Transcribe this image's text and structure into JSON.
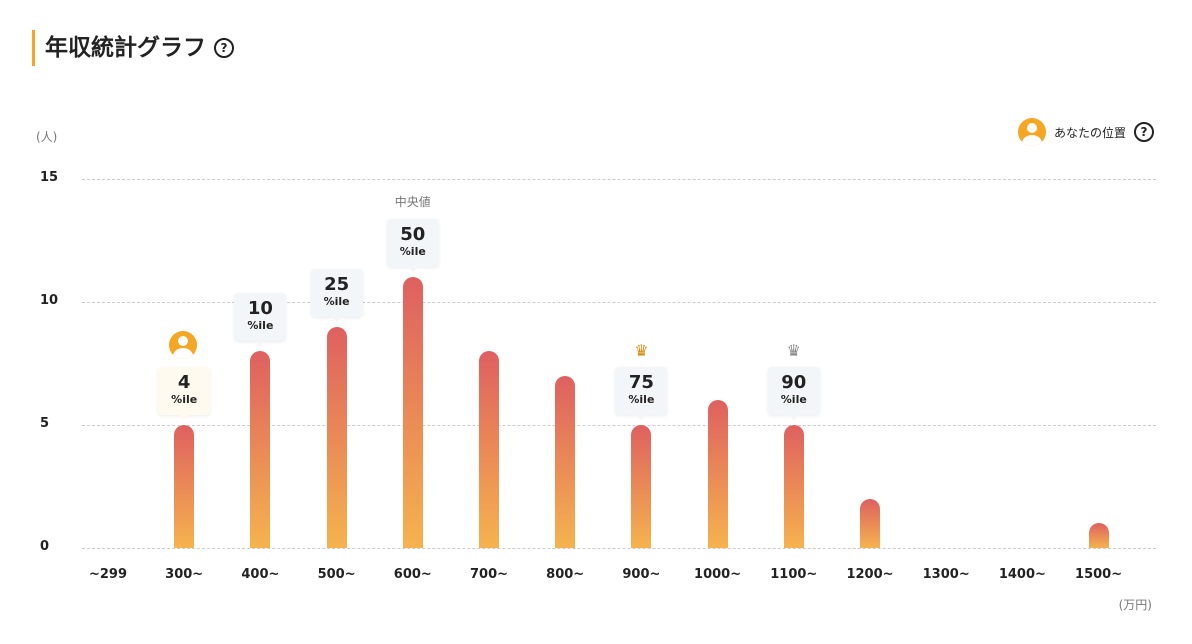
{
  "header": {
    "title": "年収統計グラフ",
    "help": "?"
  },
  "legend": {
    "label": "あなたの位置",
    "help": "?"
  },
  "colors": {
    "accent": "#f5a623",
    "bar_top": "#de6060",
    "bar_bottom": "#f5b34e",
    "crown_gold": "#d98a10",
    "crown_silver": "#888888"
  },
  "chart_data": {
    "type": "bar",
    "title": "年収統計グラフ",
    "ylabel": "(人)",
    "xlabel": "(万円)",
    "ylim": [
      0,
      15
    ],
    "yticks": [
      0,
      5,
      10,
      15
    ],
    "grid": true,
    "categories": [
      "~299",
      "300~",
      "400~",
      "500~",
      "600~",
      "700~",
      "800~",
      "900~",
      "1000~",
      "1100~",
      "1200~",
      "1300~",
      "1400~",
      "1500~"
    ],
    "values": [
      0,
      5,
      8,
      9,
      11,
      8,
      7,
      5,
      6,
      5,
      2,
      0,
      0,
      1
    ],
    "percentile_labels": [
      {
        "category_index": 1,
        "value": "4",
        "suffix": "%ile",
        "marker": "you"
      },
      {
        "category_index": 2,
        "value": "10",
        "suffix": "%ile"
      },
      {
        "category_index": 3,
        "value": "25",
        "suffix": "%ile"
      },
      {
        "category_index": 4,
        "value": "50",
        "suffix": "%ile",
        "note": "中央値"
      },
      {
        "category_index": 7,
        "value": "75",
        "suffix": "%ile",
        "marker": "gold-crown"
      },
      {
        "category_index": 9,
        "value": "90",
        "suffix": "%ile",
        "marker": "silver-crown"
      }
    ]
  }
}
